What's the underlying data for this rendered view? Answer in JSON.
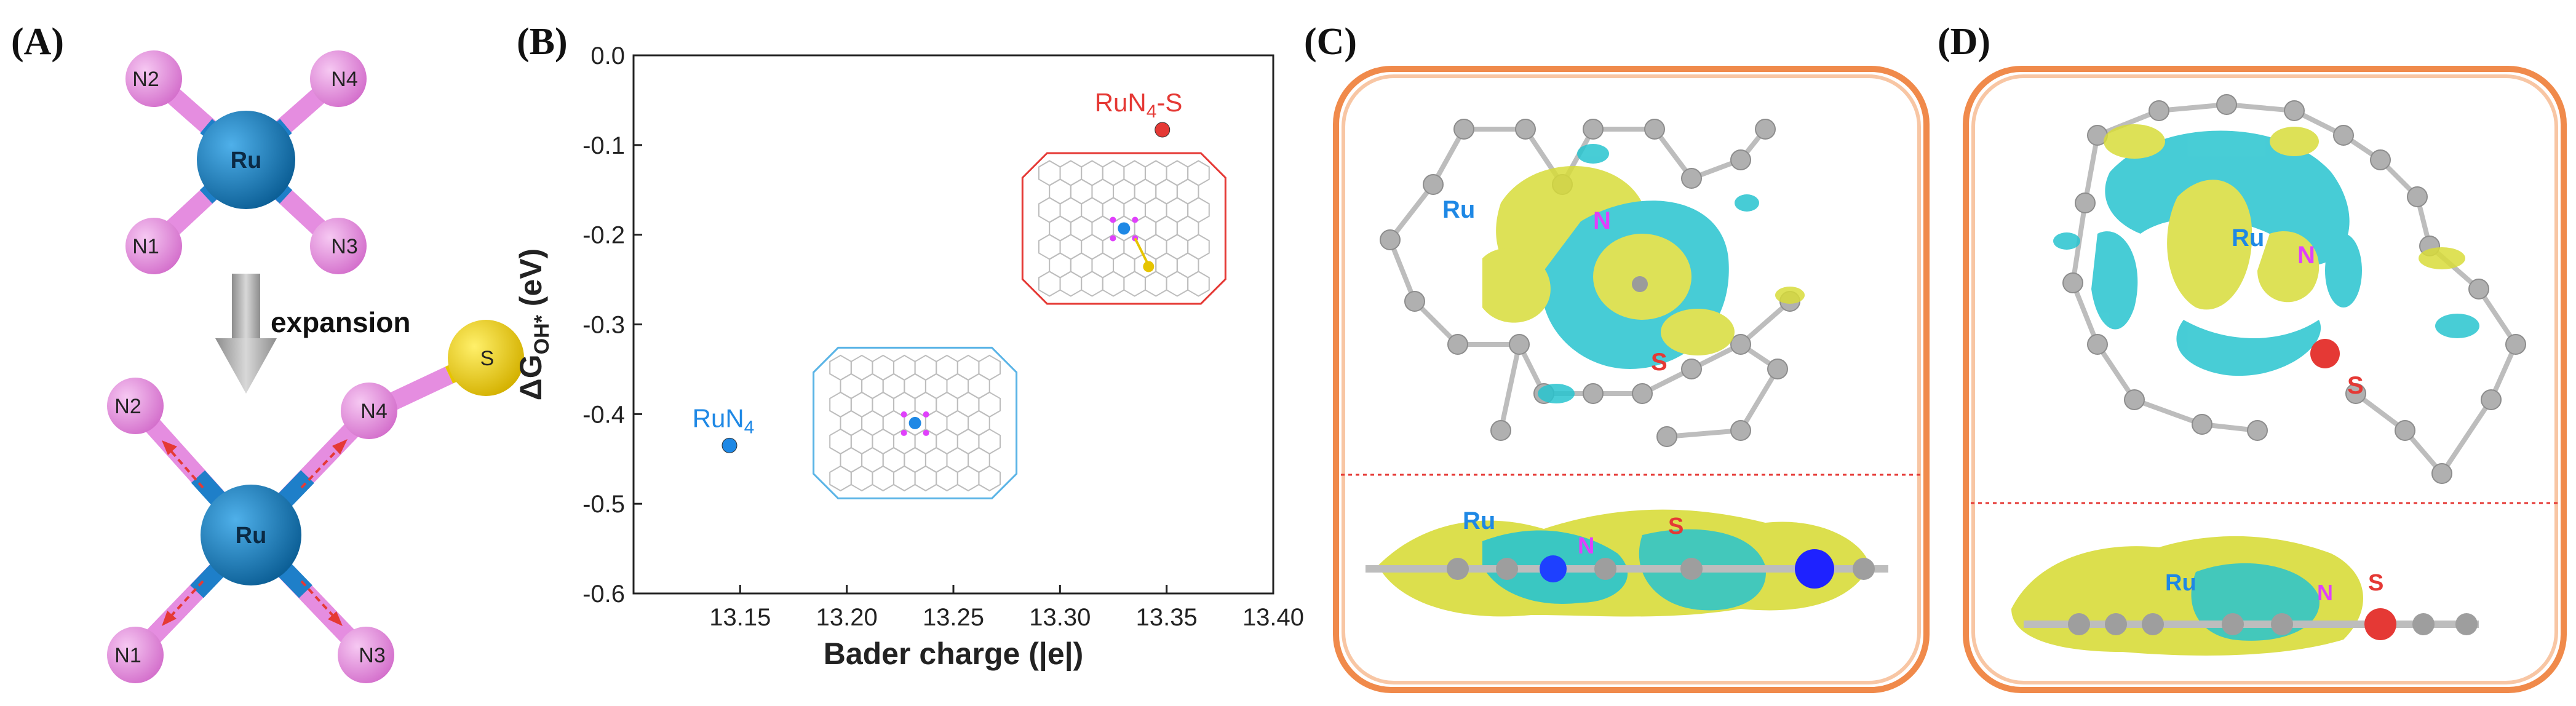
{
  "panels": {
    "a": {
      "label": "(A)",
      "top": {
        "center": "Ru",
        "n1": "N1",
        "n2": "N2",
        "n3": "N3",
        "n4": "N4"
      },
      "arrow_label": "expansion",
      "bottom": {
        "center": "Ru",
        "n1": "N1",
        "n2": "N2",
        "n3": "N3",
        "n4": "N4",
        "s": "S"
      }
    },
    "b": {
      "label": "(B)"
    },
    "c": {
      "label": "(C)",
      "ru": "Ru",
      "n": "N",
      "s": "S",
      "ru2": "Ru",
      "n2": "N",
      "s2": "S"
    },
    "d": {
      "label": "(D)",
      "ru": "Ru",
      "n": "N",
      "s": "S",
      "ru2": "Ru",
      "n2": "N",
      "s2": "S"
    }
  },
  "chart_data": {
    "type": "scatter",
    "xlabel": "Bader charge (|e|)",
    "ylabel": "ΔG_OH* (eV)",
    "xlim": [
      13.1,
      13.4
    ],
    "ylim": [
      -0.6,
      0.0
    ],
    "xticks": [
      13.15,
      13.2,
      13.25,
      13.3,
      13.35,
      13.4
    ],
    "xtick_labels": [
      "13.15",
      "13.20",
      "13.25",
      "13.30",
      "13.35",
      "13.40"
    ],
    "yticks": [
      0.0,
      -0.1,
      -0.2,
      -0.3,
      -0.4,
      -0.5,
      -0.6
    ],
    "ytick_labels": [
      "0.0",
      "-0.1",
      "-0.2",
      "-0.3",
      "-0.4",
      "-0.5",
      "-0.6"
    ],
    "points": [
      {
        "label": "RuN4",
        "x": 13.145,
        "y": -0.435,
        "color": "#1e88e5"
      },
      {
        "label": "RuN4-S",
        "x": 13.348,
        "y": -0.083,
        "color": "#e53935"
      }
    ]
  }
}
